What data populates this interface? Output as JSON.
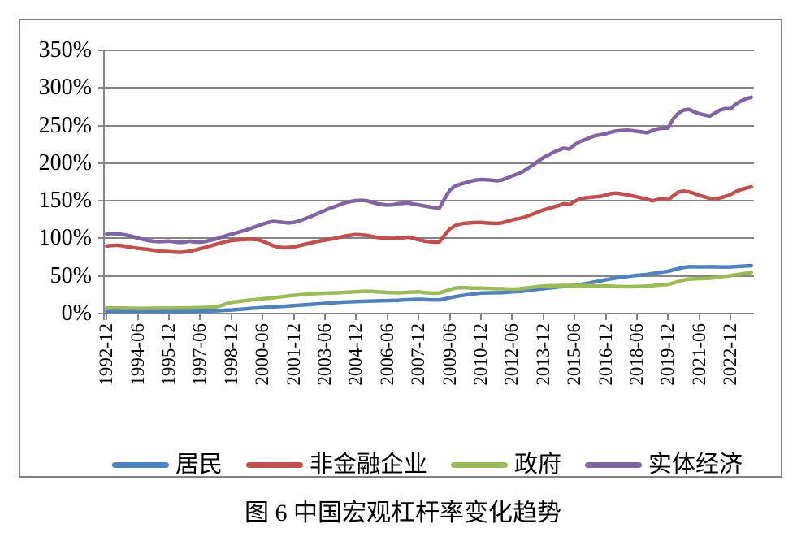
{
  "figure": {
    "caption": "图 6 中国宏观杠杆率变化趋势"
  },
  "colors": {
    "grid": "#848484",
    "frame_border": "#808080",
    "background": "#ffffff",
    "series_blue": "#4F81BD",
    "series_red": "#C0504D",
    "series_green": "#9BBB59",
    "series_purple": "#8064A2"
  },
  "chart_data": {
    "type": "line",
    "title": "图 6 中国宏观杠杆率变化趋势",
    "xlabel": "",
    "ylabel": "",
    "ylim": [
      0,
      350
    ],
    "y_tick_step_percent": 50,
    "grid": true,
    "legend_position": "bottom",
    "x_start": "1992-12",
    "x_end": "2023-12",
    "frequency": "quarterly",
    "y_tick_labels": [
      "0%",
      "50%",
      "100%",
      "150%",
      "200%",
      "250%",
      "300%",
      "350%"
    ],
    "x_tick_labels": [
      "1992-12",
      "1994-06",
      "1995-12",
      "1997-06",
      "1998-12",
      "2000-06",
      "2001-12",
      "2003-06",
      "2004-12",
      "2006-06",
      "2007-12",
      "2009-06",
      "2010-12",
      "2012-06",
      "2013-12",
      "2015-06",
      "2016-12",
      "2018-06",
      "2019-12",
      "2021-06",
      "2022-12"
    ],
    "x_tick_every_n_points": 6,
    "series": [
      {
        "key": "residents",
        "name": "居民",
        "color": "#4F81BD",
        "values": [
          3.0,
          3.1,
          3.3,
          3.4,
          3.5,
          3.4,
          3.2,
          3.1,
          3.0,
          2.9,
          2.8,
          2.8,
          2.8,
          2.9,
          3.0,
          3.0,
          3.1,
          3.2,
          3.3,
          3.4,
          3.5,
          3.7,
          4.0,
          4.4,
          4.8,
          5.3,
          5.8,
          6.4,
          7.0,
          7.5,
          8.0,
          8.4,
          8.8,
          9.2,
          9.6,
          10.0,
          10.5,
          11.0,
          11.5,
          12.0,
          12.5,
          13.0,
          13.5,
          14.0,
          14.5,
          15.0,
          15.4,
          15.7,
          16.0,
          16.2,
          16.4,
          16.6,
          16.8,
          17.0,
          17.2,
          17.4,
          17.6,
          18.0,
          18.4,
          18.7,
          18.9,
          18.6,
          18.3,
          18.1,
          18.0,
          19.5,
          21.0,
          22.4,
          23.5,
          24.6,
          25.6,
          26.5,
          27.2,
          27.4,
          27.5,
          27.7,
          27.9,
          28.3,
          28.8,
          29.2,
          29.7,
          30.6,
          31.5,
          32.3,
          33.1,
          33.8,
          34.6,
          35.3,
          36.0,
          36.9,
          37.8,
          38.6,
          39.4,
          40.8,
          42.2,
          43.5,
          44.9,
          46.1,
          47.2,
          48.2,
          49.1,
          50.0,
          50.8,
          51.5,
          52.2,
          53.3,
          54.4,
          55.3,
          56.2,
          58.1,
          59.9,
          61.3,
          62.3,
          62.2,
          62.1,
          62.1,
          62.2,
          62.1,
          62.0,
          62.0,
          62.0,
          62.6,
          63.0,
          63.3,
          63.6
        ]
      },
      {
        "key": "nonfinancial-enterprises",
        "name": "非金融企业",
        "color": "#C0504D",
        "values": [
          90.0,
          90.5,
          90.8,
          90.2,
          89.0,
          87.8,
          86.8,
          86.0,
          85.3,
          84.3,
          83.4,
          82.8,
          82.3,
          81.8,
          81.5,
          82.0,
          83.0,
          84.5,
          86.2,
          88.0,
          90.0,
          92.0,
          94.0,
          95.8,
          97.2,
          97.8,
          98.3,
          98.8,
          99.0,
          98.3,
          96.3,
          93.3,
          90.3,
          88.5,
          87.6,
          87.9,
          88.6,
          90.2,
          91.8,
          93.4,
          95.2,
          96.6,
          97.8,
          98.8,
          100.2,
          101.8,
          103.2,
          104.2,
          105.2,
          104.6,
          104.0,
          102.6,
          101.2,
          100.6,
          100.1,
          99.9,
          100.1,
          100.9,
          101.6,
          100.1,
          98.2,
          96.6,
          95.6,
          95.1,
          95.2,
          104.5,
          112.5,
          116.8,
          119.2,
          120.2,
          120.8,
          121.1,
          121.2,
          120.6,
          120.1,
          119.9,
          120.6,
          122.6,
          124.6,
          126.1,
          127.2,
          129.8,
          132.3,
          135.2,
          137.8,
          139.8,
          141.8,
          143.8,
          146.2,
          144.8,
          149.2,
          152.2,
          153.8,
          154.6,
          155.2,
          155.8,
          157.6,
          159.6,
          160.2,
          159.2,
          158.2,
          156.6,
          155.2,
          153.6,
          152.0,
          149.8,
          151.8,
          152.8,
          151.2,
          156.8,
          161.8,
          162.8,
          161.8,
          159.8,
          157.2,
          155.2,
          153.2,
          152.2,
          153.8,
          155.8,
          158.2,
          162.2,
          164.8,
          166.8,
          168.5
        ]
      },
      {
        "key": "government",
        "name": "政府",
        "color": "#9BBB59",
        "values": [
          7.2,
          7.2,
          7.3,
          7.2,
          7.1,
          7.0,
          6.9,
          6.9,
          6.9,
          7.0,
          7.1,
          7.1,
          7.1,
          7.2,
          7.3,
          7.4,
          7.5,
          7.7,
          7.9,
          8.1,
          8.3,
          8.8,
          10.5,
          13.0,
          15.0,
          15.8,
          16.6,
          17.4,
          18.2,
          18.8,
          19.5,
          20.2,
          21.0,
          21.8,
          22.6,
          23.4,
          24.2,
          24.8,
          25.4,
          26.0,
          26.5,
          26.8,
          27.0,
          27.3,
          27.5,
          27.8,
          28.2,
          28.6,
          29.0,
          29.3,
          29.6,
          29.4,
          29.0,
          28.5,
          28.0,
          27.8,
          27.6,
          27.8,
          28.2,
          28.6,
          29.0,
          28.0,
          27.2,
          27.0,
          27.3,
          29.5,
          31.8,
          33.8,
          34.5,
          34.2,
          33.9,
          33.7,
          33.8,
          33.5,
          33.2,
          33.0,
          33.1,
          32.7,
          32.4,
          32.6,
          33.4,
          34.2,
          35.0,
          35.8,
          36.5,
          36.8,
          37.0,
          37.2,
          37.4,
          37.3,
          37.1,
          37.0,
          37.2,
          36.9,
          36.6,
          36.4,
          36.7,
          36.3,
          36.0,
          35.8,
          35.6,
          35.7,
          35.9,
          36.1,
          36.3,
          37.1,
          37.8,
          38.3,
          38.6,
          40.6,
          42.6,
          44.6,
          45.8,
          46.0,
          46.2,
          46.6,
          46.9,
          47.8,
          48.7,
          49.5,
          50.2,
          51.6,
          52.6,
          53.6,
          54.6
        ]
      },
      {
        "key": "real-economy",
        "name": "实体经济",
        "color": "#8064A2",
        "values": [
          106.0,
          106.5,
          106.2,
          105.2,
          104.0,
          102.4,
          100.4,
          98.6,
          97.2,
          96.2,
          95.6,
          96.0,
          96.4,
          95.4,
          94.6,
          95.0,
          96.2,
          95.2,
          95.0,
          96.0,
          97.5,
          99.0,
          101.5,
          103.5,
          105.5,
          107.5,
          109.5,
          111.5,
          114.0,
          116.5,
          119.0,
          121.0,
          122.5,
          122.0,
          121.2,
          120.6,
          121.2,
          123.2,
          125.6,
          128.2,
          131.2,
          134.2,
          137.2,
          140.2,
          142.6,
          145.2,
          147.6,
          149.2,
          150.2,
          150.6,
          150.0,
          148.2,
          146.2,
          145.2,
          144.2,
          144.6,
          146.0,
          146.6,
          147.2,
          145.6,
          144.6,
          143.2,
          142.0,
          141.0,
          140.2,
          152.5,
          164.0,
          169.5,
          172.0,
          174.0,
          176.0,
          177.5,
          178.2,
          178.0,
          177.5,
          176.6,
          177.6,
          180.2,
          183.0,
          185.6,
          188.6,
          193.0,
          197.6,
          202.6,
          207.4,
          211.0,
          214.6,
          217.6,
          220.0,
          218.6,
          224.6,
          228.6,
          231.2,
          234.2,
          236.6,
          237.8,
          239.2,
          241.2,
          242.8,
          243.4,
          243.9,
          243.2,
          242.4,
          241.4,
          240.4,
          243.6,
          245.6,
          246.6,
          246.6,
          259.2,
          266.6,
          270.6,
          271.6,
          268.2,
          265.6,
          264.0,
          262.6,
          266.6,
          270.6,
          272.6,
          272.2,
          278.6,
          282.6,
          285.6,
          287.6
        ]
      }
    ]
  }
}
